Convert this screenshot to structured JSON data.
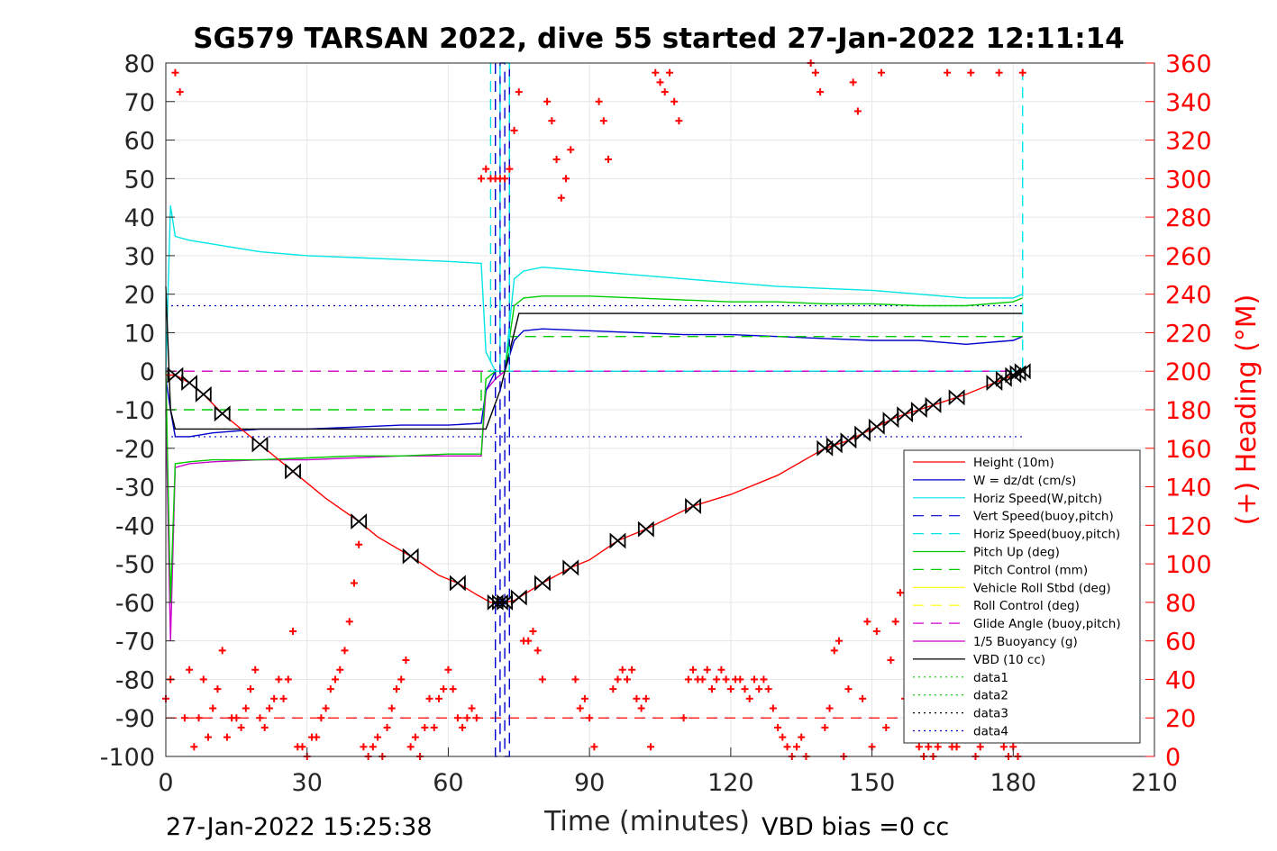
{
  "chart_data": {
    "type": "line",
    "title": "SG579 TARSAN 2022, dive 55 started 27-Jan-2022 12:11:14",
    "xlabel": "Time (minutes)",
    "ylabel_right": "(+) Heading (°M)",
    "xlim": [
      0,
      210
    ],
    "ylim": [
      -100,
      80
    ],
    "ylim_right": [
      0,
      360
    ],
    "x_ticks": [
      0,
      30,
      60,
      90,
      120,
      150,
      180,
      210
    ],
    "y_ticks": [
      80,
      70,
      60,
      50,
      40,
      30,
      20,
      10,
      0,
      -10,
      -20,
      -30,
      -40,
      -50,
      -60,
      -70,
      -80,
      -90,
      -100
    ],
    "y_ticks_right": [
      360,
      340,
      320,
      300,
      280,
      260,
      240,
      220,
      200,
      180,
      160,
      140,
      120,
      100,
      80,
      60,
      40,
      20,
      0
    ],
    "grid": true,
    "legend_position": "bottom-right",
    "footer_left": "27-Jan-2022 15:25:38",
    "footer_right": "VBD bias =0 cc",
    "series": [
      {
        "name": "Height (10m)",
        "color": "#ff0000",
        "style": "solid",
        "x": [
          0,
          2,
          5,
          8,
          12,
          20,
          27,
          34,
          41,
          45,
          52,
          58,
          62,
          66,
          69,
          70,
          71,
          72,
          74,
          76,
          80,
          86,
          90,
          96,
          102,
          112,
          120,
          130,
          140,
          145,
          150,
          155,
          160,
          165,
          170,
          176,
          180,
          182
        ],
        "values": [
          -1,
          -1,
          -3,
          -6,
          -11,
          -19,
          -26,
          -33,
          -39,
          -43,
          -48,
          -53,
          -55,
          -58,
          -60,
          -60,
          -60,
          -60,
          -59.5,
          -58,
          -55,
          -51,
          -49,
          -44,
          -41,
          -35,
          -32,
          -27,
          -20,
          -18,
          -15,
          -12,
          -10,
          -8,
          -6,
          -3,
          -1,
          0
        ]
      },
      {
        "name": "W = dz/dt (cm/s)",
        "color": "#0000cc",
        "style": "solid",
        "x": [
          0,
          1,
          2,
          5,
          10,
          20,
          30,
          40,
          50,
          60,
          67,
          68,
          70,
          72,
          74,
          76,
          80,
          90,
          100,
          110,
          120,
          130,
          140,
          150,
          160,
          170,
          180,
          182
        ],
        "values": [
          -2,
          -10,
          -17,
          -17,
          -16,
          -15,
          -15,
          -14.5,
          -14,
          -14,
          -13.5,
          -5,
          0,
          0,
          8,
          10.5,
          11,
          10.5,
          10,
          9.5,
          9.5,
          9,
          8.5,
          8,
          8,
          7,
          8,
          9
        ]
      },
      {
        "name": "Horiz Speed(W,pitch)",
        "color": "#00e5e5",
        "style": "solid",
        "x": [
          0,
          1,
          2,
          5,
          10,
          20,
          30,
          40,
          50,
          60,
          67,
          68,
          70,
          72,
          74,
          76,
          80,
          90,
          100,
          110,
          120,
          130,
          140,
          150,
          160,
          170,
          180,
          182
        ],
        "values": [
          0,
          43,
          35,
          34,
          33,
          31,
          30,
          29.5,
          29,
          28.5,
          28,
          5,
          0,
          0,
          24,
          26,
          27,
          26,
          25,
          24,
          23,
          22,
          21.5,
          21,
          20,
          19,
          19,
          20
        ]
      },
      {
        "name": "Vert Speed(buoy,pitch)",
        "color": "#0000cc",
        "style": "dashed",
        "x": [
          70,
          70,
          71,
          71,
          72,
          72,
          73,
          73
        ],
        "values": [
          80,
          -100,
          -100,
          80,
          80,
          -100,
          -100,
          80
        ]
      },
      {
        "name": "Horiz Speed(buoy,pitch)",
        "color": "#00e5e5",
        "style": "dashed",
        "x": [
          69,
          69,
          71,
          71,
          73,
          73,
          182,
          182
        ],
        "values": [
          80,
          0,
          0,
          80,
          80,
          0,
          0,
          80
        ]
      },
      {
        "name": "Pitch Up (deg)",
        "color": "#00cc00",
        "style": "solid",
        "x": [
          0,
          1,
          2,
          5,
          10,
          20,
          30,
          40,
          50,
          60,
          67,
          68,
          70,
          72,
          74,
          76,
          80,
          90,
          100,
          110,
          120,
          130,
          140,
          150,
          160,
          170,
          180,
          182
        ],
        "values": [
          0,
          -60,
          -24,
          -23.5,
          -23,
          -23,
          -22.5,
          -22,
          -22,
          -21.5,
          -21.5,
          -2,
          0,
          0,
          17,
          19,
          19.5,
          19.5,
          19,
          18.5,
          18,
          18,
          17.5,
          17.5,
          17,
          17,
          18,
          19
        ]
      },
      {
        "name": "Pitch Control (mm)",
        "color": "#00cc00",
        "style": "dashed",
        "x": [
          0,
          2,
          67,
          67,
          73,
          73,
          75,
          182
        ],
        "values": [
          -10,
          -10,
          -10,
          0,
          0,
          9,
          9,
          9
        ]
      },
      {
        "name": "Vehicle Roll Stbd (deg)",
        "color": "#ffff00",
        "style": "solid",
        "x": [
          0,
          2,
          5,
          10,
          20,
          30,
          40,
          50,
          60,
          67,
          70,
          75,
          80,
          100,
          120,
          140,
          160,
          180,
          182
        ],
        "values": [
          0,
          0,
          0,
          0,
          0,
          0,
          0,
          0,
          0,
          0,
          0,
          0,
          0,
          0,
          0,
          0,
          0,
          0,
          0
        ]
      },
      {
        "name": "Roll Control (deg)",
        "color": "#ffff00",
        "style": "dashed",
        "x": [
          0,
          182
        ],
        "values": [
          0,
          0
        ]
      },
      {
        "name": "Glide Angle (buoy,pitch)",
        "color": "#cc00cc",
        "style": "dashed",
        "x": [
          0,
          70,
          70,
          182
        ],
        "values": [
          0,
          0,
          0,
          0
        ]
      },
      {
        "name": "1/5 Buoyancy (g)",
        "color": "#cc00cc",
        "style": "solid",
        "x": [
          0,
          1,
          2,
          5,
          10,
          20,
          30,
          40,
          50,
          60,
          67,
          68,
          70,
          72,
          74,
          182
        ],
        "values": [
          -10,
          -70,
          -25,
          -24,
          -23.5,
          -23,
          -23,
          -22.5,
          -22,
          -22,
          -22,
          -5,
          -2,
          0,
          0,
          0
        ]
      },
      {
        "name": "VBD (10 cc)",
        "color": "#000000",
        "style": "solid",
        "x": [
          0,
          1,
          2,
          68,
          71,
          75,
          182
        ],
        "values": [
          22,
          -10,
          -15,
          -15,
          -5,
          15,
          15
        ]
      },
      {
        "name": "data1",
        "color": "#00cc00",
        "style": "dotted",
        "x": [
          0,
          182
        ],
        "values": [
          0,
          0
        ]
      },
      {
        "name": "data2",
        "color": "#00cc00",
        "style": "dotted",
        "x": [
          0,
          182
        ],
        "values": [
          0,
          0
        ]
      },
      {
        "name": "data3",
        "color": "#000000",
        "style": "dotted",
        "x": [
          0,
          182
        ],
        "values": [
          0,
          0
        ]
      },
      {
        "name": "data4",
        "color": "#0000cc",
        "style": "dotted",
        "x": [
          0,
          182
        ],
        "values": [
          0,
          0
        ]
      }
    ],
    "extra_lines": [
      {
        "color": "#0000cc",
        "style": "dotted",
        "y": 17,
        "x": [
          0,
          182
        ]
      },
      {
        "color": "#0000cc",
        "style": "dotted",
        "y": -17,
        "x": [
          0,
          182
        ]
      },
      {
        "color": "#ff0000",
        "style": "dashed",
        "y": -90,
        "x": [
          0,
          182
        ]
      }
    ],
    "height_markers_x": [
      2,
      5,
      8,
      12,
      20,
      27,
      41,
      52,
      62,
      70,
      71,
      72,
      75,
      80,
      86,
      96,
      102,
      112,
      140,
      142,
      145,
      148,
      151,
      154,
      157,
      160,
      163,
      168,
      176,
      178,
      180,
      181,
      182
    ],
    "heading": {
      "axis": "right",
      "color": "#ff0000",
      "marker": "+",
      "x": [
        0,
        1,
        2,
        3,
        4,
        5,
        6,
        7,
        8,
        9,
        10,
        11,
        12,
        13,
        14,
        15,
        16,
        17,
        18,
        19,
        20,
        21,
        22,
        23,
        24,
        25,
        26,
        27,
        28,
        29,
        30,
        31,
        32,
        33,
        34,
        35,
        36,
        37,
        38,
        39,
        40,
        41,
        42,
        43,
        44,
        45,
        46,
        47,
        48,
        49,
        50,
        51,
        52,
        53,
        54,
        55,
        56,
        57,
        58,
        59,
        60,
        61,
        62,
        63,
        64,
        65,
        66,
        67,
        68,
        69,
        70,
        71,
        72,
        73,
        74,
        75,
        76,
        77,
        78,
        79,
        80,
        81,
        82,
        83,
        84,
        85,
        86,
        87,
        88,
        89,
        90,
        91,
        92,
        93,
        94,
        95,
        96,
        97,
        98,
        99,
        100,
        101,
        102,
        103,
        104,
        105,
        106,
        107,
        108,
        109,
        110,
        111,
        112,
        113,
        114,
        115,
        116,
        117,
        118,
        119,
        120,
        121,
        122,
        123,
        124,
        125,
        126,
        127,
        128,
        129,
        130,
        131,
        132,
        133,
        134,
        135,
        136,
        137,
        138,
        139,
        140,
        141,
        142,
        143,
        144,
        145,
        146,
        147,
        148,
        149,
        150,
        151,
        152,
        153,
        154,
        155,
        156,
        157,
        158,
        159,
        160,
        161,
        162,
        163,
        164,
        165,
        166,
        167,
        168,
        169,
        170,
        171,
        172,
        173,
        174,
        175,
        176,
        177,
        178,
        179,
        180,
        181,
        182
      ],
      "values": [
        30,
        40,
        355,
        345,
        20,
        45,
        5,
        20,
        40,
        10,
        25,
        35,
        55,
        10,
        20,
        20,
        15,
        25,
        35,
        45,
        20,
        15,
        25,
        30,
        40,
        30,
        40,
        65,
        5,
        5,
        0,
        10,
        10,
        20,
        25,
        35,
        40,
        45,
        55,
        70,
        90,
        110,
        5,
        0,
        5,
        10,
        0,
        15,
        25,
        35,
        40,
        50,
        5,
        10,
        0,
        15,
        30,
        15,
        30,
        35,
        45,
        35,
        20,
        15,
        20,
        25,
        20,
        300,
        305,
        300,
        300,
        300,
        300,
        305,
        325,
        345,
        60,
        60,
        65,
        55,
        40,
        340,
        330,
        310,
        290,
        300,
        315,
        40,
        25,
        30,
        20,
        5,
        340,
        330,
        310,
        35,
        40,
        45,
        40,
        45,
        30,
        25,
        30,
        5,
        355,
        350,
        345,
        355,
        340,
        330,
        20,
        40,
        45,
        40,
        40,
        45,
        35,
        40,
        45,
        40,
        35,
        40,
        40,
        35,
        30,
        40,
        35,
        40,
        35,
        25,
        15,
        10,
        5,
        0,
        5,
        10,
        0,
        360,
        355,
        345,
        15,
        25,
        55,
        60,
        0,
        35,
        350,
        335,
        30,
        70,
        5,
        65,
        355,
        15,
        50,
        70,
        85,
        30,
        10,
        15,
        5,
        0,
        5,
        0,
        5,
        15,
        355,
        5,
        5,
        10,
        20,
        355,
        0,
        5,
        10,
        15,
        20,
        355,
        5,
        0,
        5,
        0,
        355
      ]
    }
  }
}
